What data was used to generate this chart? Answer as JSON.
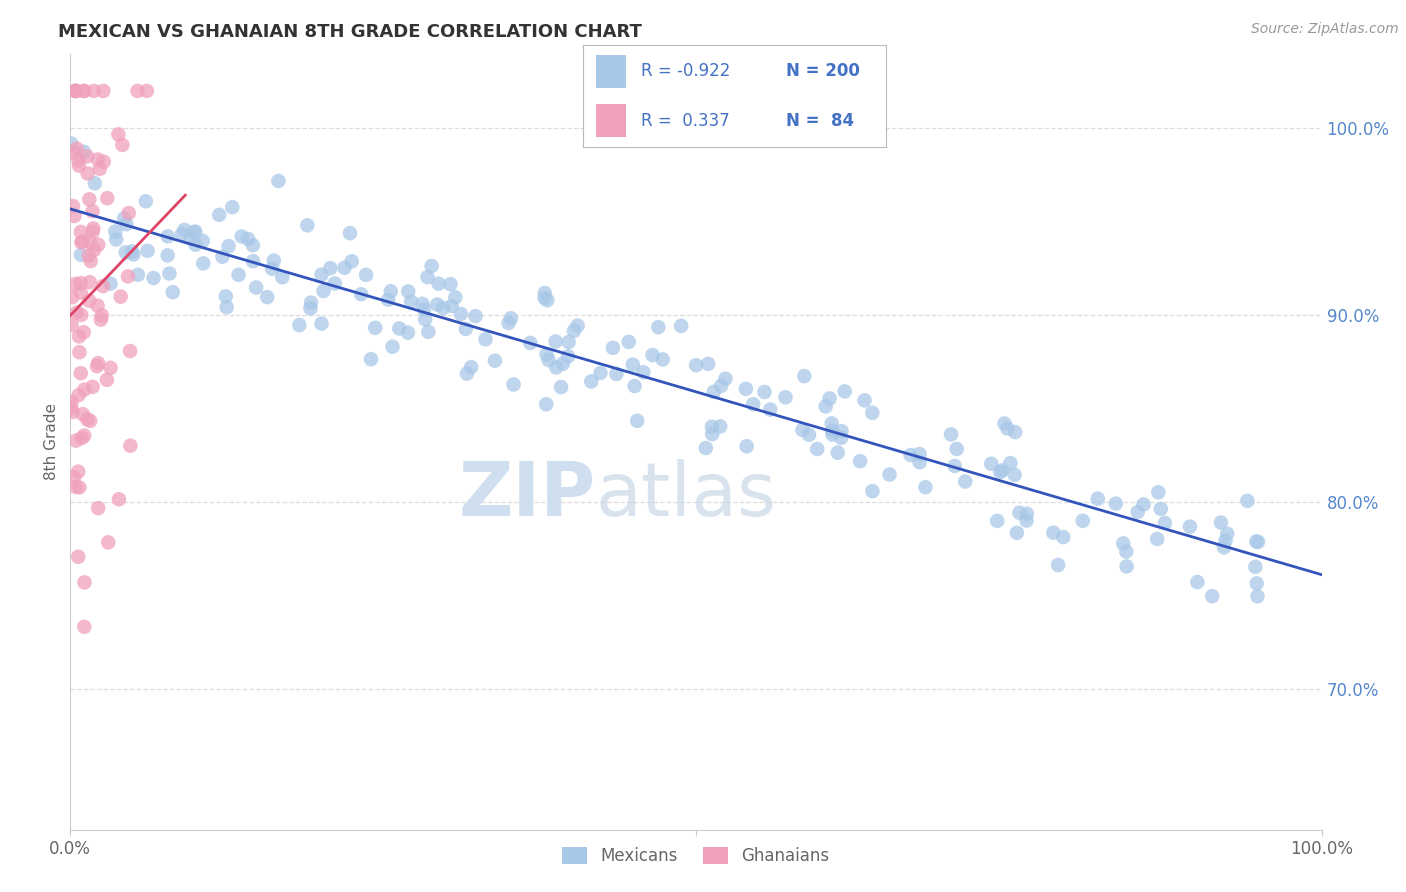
{
  "title": "MEXICAN VS GHANAIAN 8TH GRADE CORRELATION CHART",
  "source": "Source: ZipAtlas.com",
  "ylabel": "8th Grade",
  "right_yticks": [
    0.7,
    0.8,
    0.9,
    1.0
  ],
  "right_yticklabels": [
    "70.0%",
    "80.0%",
    "90.0%",
    "100.0%"
  ],
  "blue_R": -0.922,
  "blue_N": 200,
  "pink_R": 0.337,
  "pink_N": 84,
  "blue_color": "#A8C8E8",
  "pink_color": "#F0A0BC",
  "blue_line_color": "#3355BB",
  "pink_line_color": "#DD4466",
  "legend_text_color": "#4472C4",
  "right_tick_color": "#5588CC",
  "watermark_zip": "ZIP",
  "watermark_atlas": "atlas",
  "watermark_color": "#D0DFF0",
  "background_color": "#FFFFFF",
  "grid_color": "#DDDDDD",
  "xmin": 0.0,
  "xmax": 1.0,
  "ymin": 0.625,
  "ymax": 1.04,
  "seed": 12345
}
